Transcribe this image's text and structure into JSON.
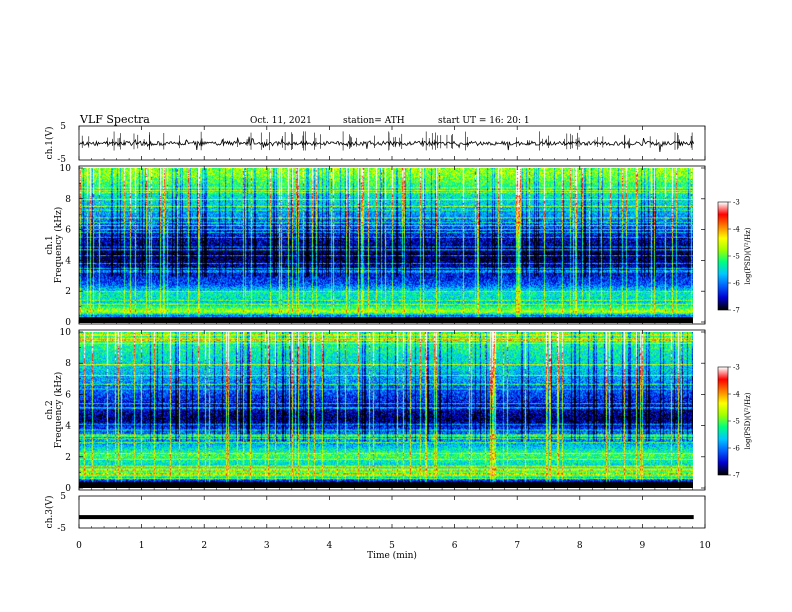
{
  "header": {
    "title": "VLF  Spectra",
    "date": "Oct. 11, 2021",
    "station": "station= ATH",
    "start": "start  UT  =    16: 20: 1"
  },
  "chart_data": [
    {
      "type": "line",
      "ylabel": "ch.1(V)",
      "ylim": [
        -5,
        5
      ],
      "yticks": [
        "5",
        "-5"
      ],
      "xlim": [
        0,
        10
      ],
      "baseline": -0.1,
      "note_values": "noisy waveform around -0.1 V with frequent short spikes"
    },
    {
      "type": "heatmap",
      "ylabel_top": "ch.1",
      "ylabel": "Frequency  (kHz)",
      "ylim": [
        0,
        10
      ],
      "yticks": [
        "0",
        "2",
        "4",
        "6",
        "8",
        "10"
      ],
      "xlim": [
        0,
        10
      ],
      "x_end": 9.82,
      "colorbar": {
        "label": "log(PSD)(V²/Hz)",
        "range": [
          -7,
          -3
        ],
        "ticks": [
          "-3",
          "-4",
          "-5",
          "-6",
          "-7"
        ]
      },
      "level_profile_khz": [
        {
          "f": 0.3,
          "logpsd": -7.0
        },
        {
          "f": 0.7,
          "logpsd": -4.6
        },
        {
          "f": 1.2,
          "logpsd": -5.6
        },
        {
          "f": 1.9,
          "logpsd": -5.4
        },
        {
          "f": 2.5,
          "logpsd": -6.2
        },
        {
          "f": 3.3,
          "logpsd": -6.5
        },
        {
          "f": 4.3,
          "logpsd": -6.9
        },
        {
          "f": 5.5,
          "logpsd": -6.5
        },
        {
          "f": 6.6,
          "logpsd": -6.0
        },
        {
          "f": 7.6,
          "logpsd": -5.6
        },
        {
          "f": 8.6,
          "logpsd": -5.3
        },
        {
          "f": 9.6,
          "logpsd": -4.8
        }
      ]
    },
    {
      "type": "heatmap",
      "ylabel_top": "ch.2",
      "ylabel": "Frequency  (kHz)",
      "ylim": [
        0,
        10
      ],
      "yticks": [
        "0",
        "2",
        "4",
        "6",
        "8",
        "10"
      ],
      "xlim": [
        0,
        10
      ],
      "x_end": 9.82,
      "colorbar": {
        "label": "log(PSD)(V²/Hz)",
        "range": [
          -7,
          -3
        ],
        "ticks": [
          "-3",
          "-4",
          "-5",
          "-6",
          "-7"
        ]
      },
      "level_profile_khz": [
        {
          "f": 0.3,
          "logpsd": -7.0
        },
        {
          "f": 0.8,
          "logpsd": -4.8
        },
        {
          "f": 1.5,
          "logpsd": -5.5
        },
        {
          "f": 2.1,
          "logpsd": -5.1
        },
        {
          "f": 2.8,
          "logpsd": -5.8
        },
        {
          "f": 3.5,
          "logpsd": -6.0
        },
        {
          "f": 4.4,
          "logpsd": -6.8
        },
        {
          "f": 5.5,
          "logpsd": -6.4
        },
        {
          "f": 6.6,
          "logpsd": -6.0
        },
        {
          "f": 7.6,
          "logpsd": -5.6
        },
        {
          "f": 8.6,
          "logpsd": -5.4
        },
        {
          "f": 9.6,
          "logpsd": -5.1
        }
      ]
    },
    {
      "type": "line",
      "ylabel": "ch.3(V)",
      "ylim": [
        -5,
        5
      ],
      "yticks": [
        "5",
        "-5"
      ],
      "xlim": [
        0,
        10
      ],
      "baseline": -1.6,
      "note_values": "flat thick trace near -1.6 V"
    }
  ],
  "xaxis": {
    "label": "Time  (min)",
    "ticks": [
      "0",
      "1",
      "2",
      "3",
      "4",
      "5",
      "6",
      "7",
      "8",
      "9",
      "10"
    ]
  },
  "colors": {
    "frame": "#000000",
    "trace": "#000000",
    "colormap": [
      "#000000",
      "#0000d0",
      "#0060ff",
      "#00c8ff",
      "#00ff80",
      "#a0ff00",
      "#ffff00",
      "#ff8000",
      "#ff0000",
      "#ffffff"
    ]
  }
}
